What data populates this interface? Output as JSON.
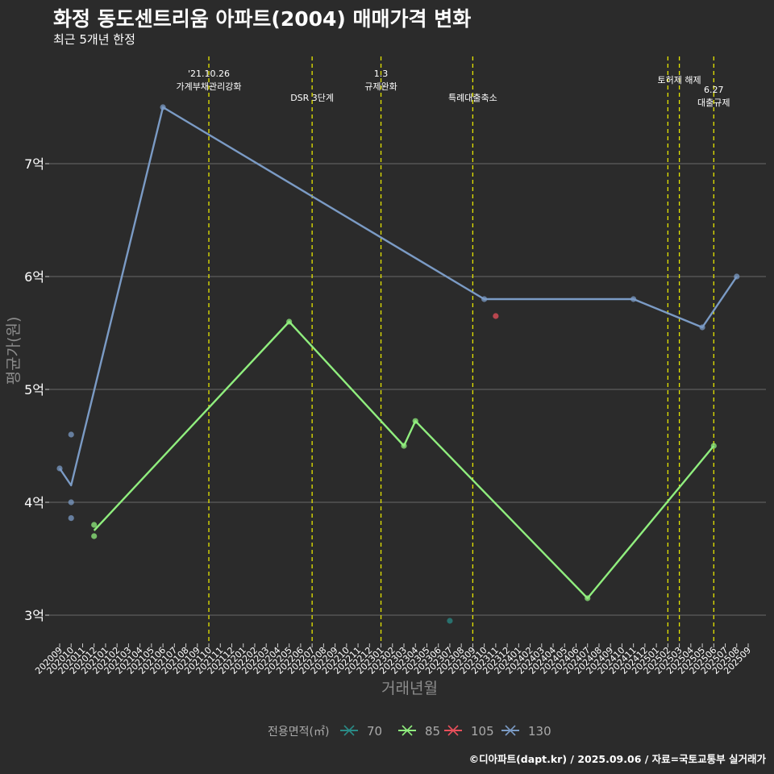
{
  "title": "화정 동도센트리움 아파트(2004) 매매가격 변화",
  "subtitle": "최근 5개년 한정",
  "caption": "©디아파트(dapt.kr) / 2025.09.06 / 자료=국토교통부 실거래가",
  "chart_data": {
    "type": "line",
    "xlabel": "거래년월",
    "ylabel": "평균가(원)",
    "categories": [
      "202009",
      "202010",
      "202011",
      "202012",
      "202101",
      "202102",
      "202103",
      "202104",
      "202105",
      "202106",
      "202107",
      "202108",
      "202109",
      "202110",
      "202111",
      "202112",
      "202201",
      "202202",
      "202203",
      "202204",
      "202205",
      "202206",
      "202207",
      "202208",
      "202209",
      "202210",
      "202211",
      "202212",
      "202301",
      "202302",
      "202303",
      "202304",
      "202305",
      "202306",
      "202307",
      "202308",
      "202309",
      "202310",
      "202311",
      "202312",
      "202401",
      "202402",
      "202403",
      "202404",
      "202405",
      "202406",
      "202407",
      "202408",
      "202409",
      "202410",
      "202411",
      "202412",
      "202501",
      "202502",
      "202503",
      "202504",
      "202505",
      "202506",
      "202507",
      "202508",
      "202509"
    ],
    "ylim": [
      2.75,
      7.95
    ],
    "yticks": [
      {
        "value": 3,
        "label": "3억"
      },
      {
        "value": 4,
        "label": "4억"
      },
      {
        "value": 5,
        "label": "5억"
      },
      {
        "value": 6,
        "label": "6억"
      },
      {
        "value": 7,
        "label": "7억"
      }
    ],
    "legend_title": "전용면적(㎡)",
    "legend_position": "bottom",
    "series": [
      {
        "name": "70",
        "color": "#2a8a86",
        "line": [],
        "points": [
          {
            "x": "202307",
            "y": 2.95
          }
        ]
      },
      {
        "name": "85",
        "color": "#90ee7e",
        "line": [
          {
            "x": "202012",
            "y": 3.75
          },
          {
            "x": "202205",
            "y": 5.6
          },
          {
            "x": "202303",
            "y": 4.5
          },
          {
            "x": "202304",
            "y": 4.72
          },
          {
            "x": "202407",
            "y": 3.15
          },
          {
            "x": "202506",
            "y": 4.5
          }
        ],
        "points": [
          {
            "x": "202012",
            "y": 3.8
          },
          {
            "x": "202012",
            "y": 3.7
          },
          {
            "x": "202205",
            "y": 5.6
          },
          {
            "x": "202303",
            "y": 4.5
          },
          {
            "x": "202304",
            "y": 4.72
          },
          {
            "x": "202407",
            "y": 3.15
          },
          {
            "x": "202506",
            "y": 4.5
          }
        ]
      },
      {
        "name": "105",
        "color": "#e8505b",
        "line": [],
        "points": [
          {
            "x": "202311",
            "y": 5.65
          }
        ]
      },
      {
        "name": "130",
        "color": "#7b9bc5",
        "line": [
          {
            "x": "202009",
            "y": 4.3
          },
          {
            "x": "202010",
            "y": 4.15
          },
          {
            "x": "202106",
            "y": 7.5
          },
          {
            "x": "202310",
            "y": 5.8
          },
          {
            "x": "202411",
            "y": 5.8
          },
          {
            "x": "202505",
            "y": 5.55
          },
          {
            "x": "202508",
            "y": 6.0
          }
        ],
        "points": [
          {
            "x": "202009",
            "y": 4.3
          },
          {
            "x": "202010",
            "y": 4.6
          },
          {
            "x": "202010",
            "y": 4.0
          },
          {
            "x": "202010",
            "y": 3.86
          },
          {
            "x": "202106",
            "y": 7.5
          },
          {
            "x": "202310",
            "y": 5.8
          },
          {
            "x": "202411",
            "y": 5.8
          },
          {
            "x": "202505",
            "y": 5.55
          },
          {
            "x": "202508",
            "y": 6.0
          }
        ]
      }
    ],
    "annotations": [
      {
        "x": "202110",
        "lines": [
          "'21.10.26",
          "가계부채관리강화"
        ],
        "level": "top"
      },
      {
        "x": "202207",
        "lines": [
          "DSR 3단계"
        ],
        "level": "low"
      },
      {
        "x": "202301",
        "lines": [
          "1.3",
          "규제완화"
        ],
        "level": "top"
      },
      {
        "x": "202309",
        "lines": [
          "특례대출축소"
        ],
        "level": "low"
      },
      {
        "x": "202502",
        "lines": [],
        "level": "top"
      },
      {
        "x": "202503",
        "lines": [
          "토허제 해제"
        ],
        "level": "mid"
      },
      {
        "x": "202506",
        "lines": [
          "6.27",
          "대출규제"
        ],
        "level": "low2"
      }
    ]
  }
}
